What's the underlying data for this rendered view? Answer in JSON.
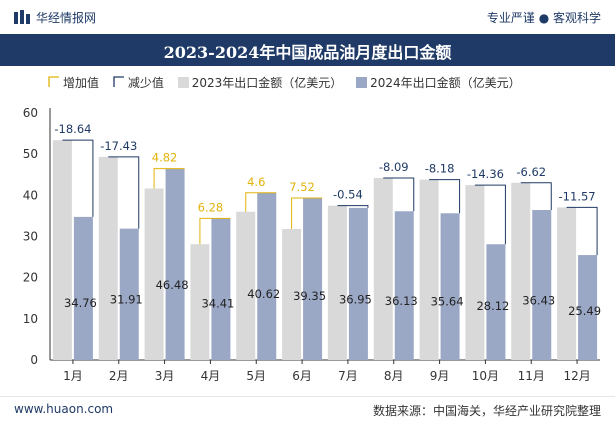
{
  "header": {
    "brand": "华经情报网",
    "tagline": "专业严谨 ● 客观科学"
  },
  "colors": {
    "bar_2023": "#d9d9d9",
    "bar_2024": "#9aa7c5",
    "increase": "#e2b30a",
    "decrease": "#1f3a66",
    "title_band": "#1f3a66"
  },
  "chart_data": {
    "type": "bar",
    "title": "2023-2024年中国成品油月度出口金额",
    "legend": [
      "增加值",
      "减少值",
      "2023年出口金额（亿美元）",
      "2024年出口金额（亿美元）"
    ],
    "legend_position": "top-left",
    "categories": [
      "1月",
      "2月",
      "3月",
      "4月",
      "5月",
      "6月",
      "7月",
      "8月",
      "9月",
      "10月",
      "11月",
      "12月"
    ],
    "series": [
      {
        "name": "2023年出口金额（亿美元）",
        "values": [
          53.4,
          49.34,
          41.66,
          28.13,
          36.02,
          31.83,
          37.49,
          44.22,
          43.82,
          42.48,
          43.05,
          37.06
        ]
      },
      {
        "name": "2024年出口金额（亿美元）",
        "values": [
          34.76,
          31.91,
          46.48,
          34.41,
          40.62,
          39.35,
          36.95,
          36.13,
          35.64,
          28.12,
          36.43,
          25.49
        ]
      }
    ],
    "changes": [
      -18.64,
      -17.43,
      4.82,
      6.28,
      4.6,
      7.52,
      -0.54,
      -8.09,
      -8.18,
      -14.36,
      -6.62,
      -11.57
    ],
    "change_labels": [
      "-18.64",
      "-17.43",
      "4.82",
      "6.28",
      "4.6",
      "7.52",
      "-0.54",
      "-8.09",
      "-8.18",
      "-14.36",
      "-6.62",
      "-11.57"
    ],
    "value_labels_2024": [
      "34.76",
      "31.91",
      "46.48",
      "34.41",
      "40.62",
      "39.35",
      "36.95",
      "36.13",
      "35.64",
      "28.12",
      "36.43",
      "25.49"
    ],
    "yticks": [
      "0",
      "10",
      "20",
      "30",
      "40",
      "50",
      "60"
    ],
    "ylim": [
      0,
      60
    ]
  },
  "footer": {
    "website": "www.huaon.com",
    "source": "数据来源：中国海关，华经产业研究院整理"
  }
}
